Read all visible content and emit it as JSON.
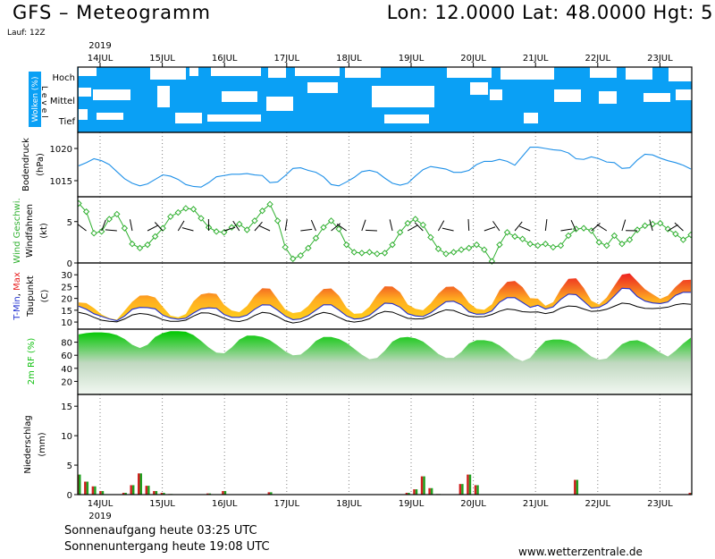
{
  "header": {
    "title": "GFS – Meteogramm",
    "coords": "Lon: 12.0000  Lat: 48.0000  Hgt: 5",
    "run": "Lauf: 12Z"
  },
  "footer": {
    "sunrise": "Sonnenaufgang heute 03:25 UTC",
    "sunset": "Sonnenuntergang heute 19:08 UTC",
    "site": "www.wetterzentrale.de"
  },
  "colors": {
    "cloud": "#0aa0f5",
    "pressure": "#1e90e8",
    "wind": "#30b030",
    "tmax": "#e82020",
    "tmin": "#2030d0",
    "dew": "#000000",
    "rh": "#10c010",
    "rain_green": "#20a020",
    "rain_red": "#d02020"
  },
  "chart_data": [
    {
      "type": "heatmap",
      "panel": "clouds",
      "ylabel": "Wolken (%)",
      "ylabel2": "Level",
      "levels": [
        "Hoch",
        "Mittel",
        "Tief"
      ],
      "year": "2019",
      "dates": [
        "14JUL",
        "15JUL",
        "16JUL",
        "17JUL",
        "18JUL",
        "19JUL",
        "20JUL",
        "21JUL",
        "22JUL",
        "23JUL"
      ]
    },
    {
      "type": "line",
      "panel": "pressure",
      "ylabel": "Bodendruck",
      "unit": "(hPa)",
      "yticks": [
        1015,
        1020
      ],
      "ylim": [
        1012.5,
        1022.5
      ],
      "values": [
        1017.3,
        1017.8,
        1018.4,
        1018.1,
        1017.5,
        1016.4,
        1015.3,
        1014.6,
        1014.2,
        1014.5,
        1015.2,
        1015.9,
        1015.7,
        1015.2,
        1014.4,
        1014.1,
        1014.0,
        1014.7,
        1015.6,
        1015.8,
        1016.0,
        1016.0,
        1016.1,
        1015.9,
        1015.8,
        1014.7,
        1014.8,
        1015.8,
        1016.9,
        1017.0,
        1016.6,
        1016.3,
        1015.6,
        1014.4,
        1014.2,
        1014.8,
        1015.5,
        1016.4,
        1016.6,
        1016.3,
        1015.4,
        1014.6,
        1014.3,
        1014.6,
        1015.7,
        1016.7,
        1017.2,
        1017.0,
        1016.8,
        1016.3,
        1016.3,
        1016.6,
        1017.5,
        1018.0,
        1018.0,
        1018.3,
        1018.0,
        1017.4,
        1018.8,
        1020.2,
        1020.2,
        1020.0,
        1019.8,
        1019.7,
        1019.3,
        1018.4,
        1018.3,
        1018.7,
        1018.4,
        1017.9,
        1017.8,
        1016.9,
        1017.0,
        1018.2,
        1019.1,
        1019.0,
        1018.5,
        1018.1,
        1017.8,
        1017.4,
        1016.8
      ]
    },
    {
      "type": "line",
      "panel": "wind",
      "ylabel": "Wind Geschwi.",
      "ylabel2": "Windfahnen",
      "unit": "(kt)",
      "yticks": [
        0,
        5
      ],
      "ylim": [
        0,
        8
      ],
      "values": [
        7.2,
        6.2,
        3.6,
        3.8,
        5.3,
        5.9,
        4.2,
        2.3,
        1.8,
        2.2,
        3.2,
        4.2,
        5.6,
        6.1,
        6.6,
        6.5,
        5.4,
        4.3,
        3.8,
        3.7,
        4.3,
        4.7,
        4.0,
        5.1,
        6.3,
        7.1,
        5.1,
        1.9,
        0.5,
        0.9,
        1.8,
        3.0,
        4.3,
        5.1,
        4.1,
        2.2,
        1.3,
        1.2,
        1.3,
        1.1,
        1.2,
        2.2,
        3.7,
        4.8,
        5.3,
        4.6,
        3.1,
        1.7,
        1.1,
        1.3,
        1.6,
        1.8,
        2.2,
        1.6,
        0.2,
        2.2,
        3.7,
        3.2,
        2.9,
        2.3,
        2.1,
        2.3,
        1.9,
        2.1,
        3.3,
        4.1,
        4.2,
        3.9,
        2.5,
        2.1,
        3.3,
        2.3,
        2.8,
        4.0,
        4.5,
        4.7,
        4.8,
        4.1,
        3.5,
        2.8,
        3.4
      ]
    },
    {
      "type": "area",
      "panel": "temperature",
      "ylabel_parts": [
        "T-Min",
        ", ",
        "Max"
      ],
      "ylabel2": "Taupunkt",
      "unit": "(C)",
      "yticks": [
        10,
        15,
        20,
        25,
        30
      ],
      "ylim": [
        7,
        35
      ],
      "series": [
        {
          "name": "Max",
          "values": [
            18.3,
            18.0,
            15.9,
            13.2,
            11.7,
            11.0,
            14.8,
            18.6,
            21.2,
            21.3,
            20.4,
            16.4,
            12.7,
            12.0,
            13.4,
            18.8,
            21.7,
            22.3,
            21.9,
            17.3,
            14.9,
            14.2,
            16.8,
            21.3,
            24.3,
            24.1,
            19.7,
            15.3,
            13.8,
            14.3,
            16.8,
            20.9,
            24.0,
            24.2,
            21.2,
            16.1,
            13.5,
            13.7,
            16.5,
            21.4,
            25.1,
            25.0,
            22.6,
            17.4,
            15.6,
            15.0,
            17.9,
            22.0,
            24.9,
            25.0,
            22.6,
            18.1,
            15.6,
            15.2,
            17.5,
            23.5,
            27.0,
            27.4,
            24.8,
            20.1,
            19.9,
            16.9,
            18.4,
            24.0,
            28.3,
            28.5,
            24.4,
            19.0,
            17.4,
            20.4,
            25.3,
            30.1,
            30.6,
            27.2,
            23.9,
            21.8,
            19.8,
            21.2,
            24.9,
            27.7,
            27.9
          ]
        },
        {
          "name": "T-Min",
          "values": [
            16.7,
            15.4,
            13.5,
            12.4,
            11.3,
            10.6,
            12.5,
            15.4,
            16.2,
            16.1,
            15.6,
            12.9,
            11.7,
            11.2,
            11.6,
            13.8,
            15.6,
            16.0,
            15.8,
            13.2,
            12.0,
            12.0,
            12.9,
            15.4,
            17.3,
            17.2,
            15.0,
            12.5,
            11.0,
            11.3,
            12.7,
            15.0,
            17.3,
            17.3,
            15.1,
            12.6,
            11.3,
            11.5,
            12.8,
            15.4,
            18.0,
            17.8,
            16.3,
            13.5,
            12.6,
            12.3,
            13.9,
            16.3,
            18.6,
            18.8,
            17.3,
            14.3,
            13.3,
            13.4,
            14.7,
            18.4,
            20.3,
            20.3,
            18.3,
            16.2,
            17.1,
            15.5,
            16.4,
            19.6,
            21.8,
            21.6,
            18.8,
            15.9,
            16.2,
            17.9,
            21.0,
            24.3,
            24.1,
            20.8,
            18.9,
            18.1,
            17.8,
            18.5,
            21.3,
            22.6,
            22.6
          ]
        },
        {
          "name": "Taupunkt",
          "values": [
            14.1,
            13.4,
            12.0,
            10.8,
            10.3,
            10.1,
            11.3,
            13.0,
            13.6,
            13.3,
            12.4,
            11.0,
            10.3,
            10.3,
            10.8,
            12.5,
            13.9,
            13.8,
            12.9,
            11.6,
            10.5,
            10.2,
            11.0,
            12.8,
            14.1,
            13.7,
            12.3,
            10.5,
            9.6,
            10.1,
            11.3,
            13.1,
            14.1,
            13.5,
            12.0,
            10.5,
            10.0,
            10.4,
            11.4,
            13.4,
            14.5,
            14.2,
            12.9,
            11.6,
            11.3,
            11.4,
            12.6,
            14.1,
            15.2,
            14.9,
            13.6,
            12.5,
            12.2,
            12.3,
            13.2,
            14.6,
            15.5,
            15.2,
            14.4,
            14.2,
            14.3,
            13.6,
            14.2,
            15.9,
            16.8,
            16.6,
            15.5,
            14.5,
            14.7,
            15.4,
            16.7,
            18.0,
            17.7,
            16.5,
            15.8,
            15.7,
            15.9,
            16.3,
            17.3,
            17.8,
            17.5
          ]
        }
      ]
    },
    {
      "type": "area",
      "panel": "humidity",
      "ylabel": "2m RF (%)",
      "yticks": [
        20,
        40,
        60,
        80
      ],
      "ylim": [
        0,
        100
      ],
      "values": [
        92,
        94,
        95,
        95,
        94,
        91,
        85,
        76,
        71,
        76,
        88,
        94,
        97,
        97,
        96,
        91,
        82,
        72,
        64,
        63,
        72,
        84,
        90,
        90,
        88,
        83,
        75,
        66,
        60,
        61,
        70,
        82,
        88,
        88,
        85,
        79,
        70,
        61,
        54,
        56,
        67,
        81,
        87,
        88,
        86,
        81,
        72,
        62,
        56,
        56,
        65,
        78,
        83,
        83,
        81,
        75,
        66,
        56,
        51,
        56,
        70,
        82,
        84,
        84,
        82,
        76,
        67,
        58,
        53,
        55,
        66,
        77,
        82,
        83,
        79,
        72,
        64,
        58,
        67,
        78,
        87
      ]
    },
    {
      "type": "bar",
      "panel": "precipitation",
      "ylabel": "Niederschlag",
      "unit": "(mm)",
      "yticks": [
        0,
        5,
        10,
        15
      ],
      "ylim": [
        0,
        17
      ],
      "values": [
        3.4,
        2.2,
        1.4,
        0.6,
        0,
        0,
        0.3,
        1.6,
        3.6,
        1.5,
        0.6,
        0.3,
        0.1,
        0,
        0,
        0,
        0,
        0.2,
        0,
        0.6,
        0,
        0,
        0,
        0,
        0,
        0.4,
        0,
        0,
        0,
        0,
        0,
        0,
        0,
        0,
        0,
        0,
        0,
        0,
        0,
        0,
        0,
        0,
        0,
        0.3,
        0.9,
        3.1,
        1.1,
        0.1,
        0,
        0,
        1.8,
        3.4,
        1.6,
        0,
        0,
        0,
        0,
        0,
        0,
        0,
        0,
        0,
        0,
        0,
        0,
        2.5,
        0,
        0,
        0,
        0,
        0,
        0,
        0,
        0,
        0,
        0,
        0,
        0,
        0,
        0,
        0.3
      ]
    }
  ]
}
